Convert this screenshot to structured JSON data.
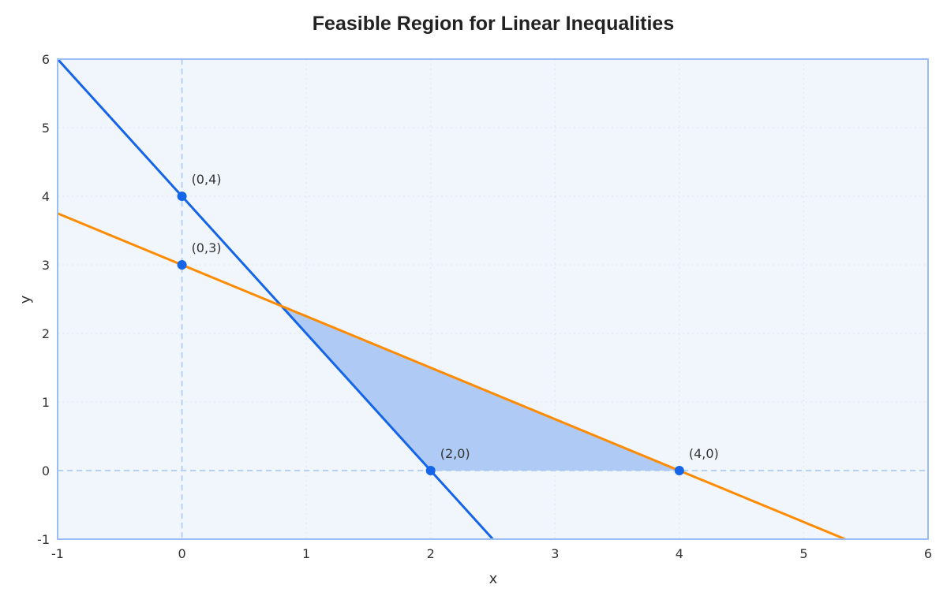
{
  "chart_data": {
    "type": "line",
    "title": "Feasible Region for Linear Inequalities",
    "xlabel": "x",
    "ylabel": "y",
    "xlim": [
      -1,
      6
    ],
    "ylim": [
      -1,
      6
    ],
    "xticks": [
      "-1",
      "0",
      "1",
      "2",
      "3",
      "4",
      "5",
      "6"
    ],
    "yticks": [
      "-1",
      "0",
      "1",
      "2",
      "3",
      "4",
      "5",
      "6"
    ],
    "grid": true,
    "series": [
      {
        "equation_slope": -2,
        "equation_intercept": 4,
        "color": "#1565e8",
        "x": [
          -1,
          2.5
        ],
        "y": [
          6,
          -1
        ]
      },
      {
        "equation_slope": -0.75,
        "equation_intercept": 3,
        "color": "#ff8c00",
        "x": [
          -1,
          5.333
        ],
        "y": [
          3.75,
          -1
        ]
      }
    ],
    "feasible_region": {
      "x": [
        0.8,
        2,
        4
      ],
      "y": [
        2.4,
        0,
        0
      ],
      "color": "#aecaf5"
    },
    "points": [
      {
        "x": 0,
        "y": 4,
        "label": "(0,4)"
      },
      {
        "x": 0,
        "y": 3,
        "label": "(0,3)"
      },
      {
        "x": 2,
        "y": 0,
        "label": "(2,0)"
      },
      {
        "x": 4,
        "y": 0,
        "label": "(4,0)"
      }
    ],
    "point_color": "#1565e8",
    "background": "#f1f6fd",
    "frame_color": "#9bbdf3"
  }
}
